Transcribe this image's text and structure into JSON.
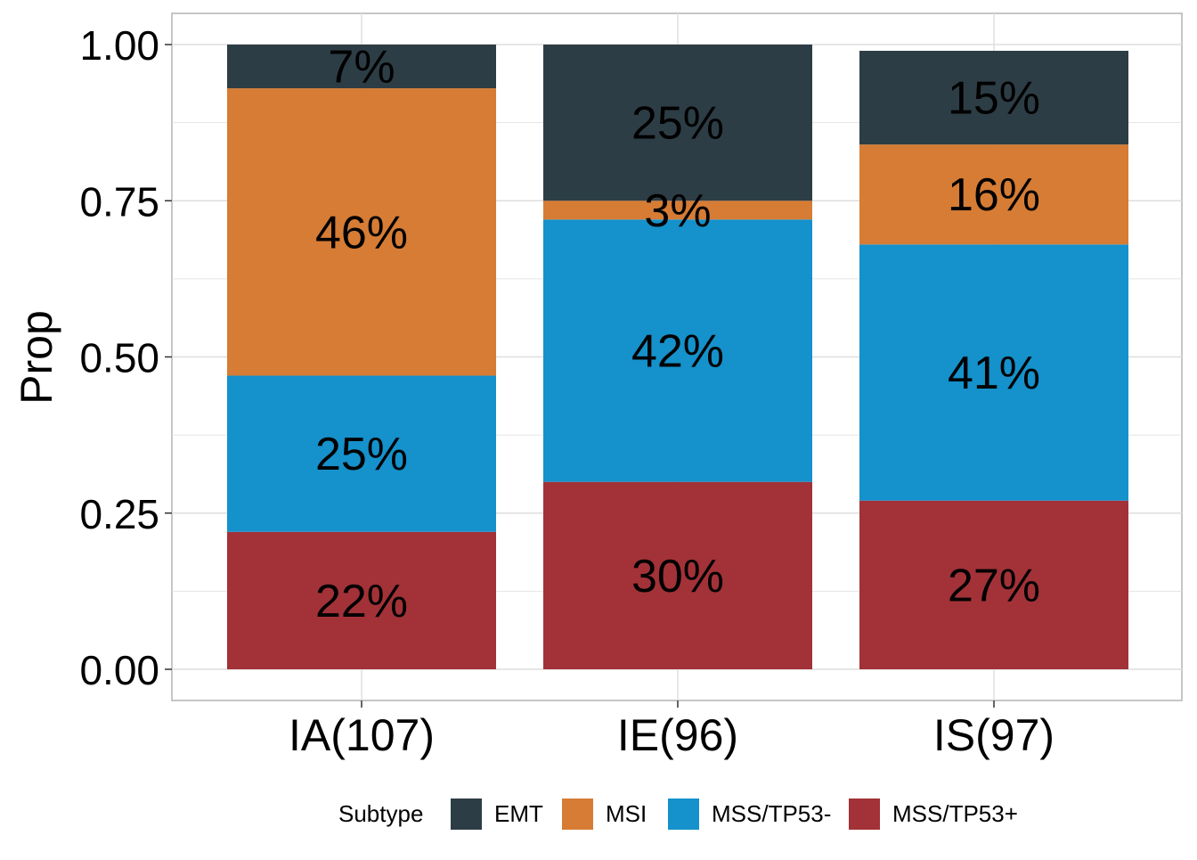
{
  "chart_data": {
    "type": "bar",
    "stacked": true,
    "ylabel": "Prop",
    "xlabel": "",
    "ylim": [
      0,
      1
    ],
    "yticks": [
      "0.00",
      "0.25",
      "0.50",
      "0.75",
      "1.00"
    ],
    "ytick_values": [
      0,
      0.25,
      0.5,
      0.75,
      1.0
    ],
    "categories": [
      "IA(107)",
      "IE(96)",
      "IS(97)"
    ],
    "series": [
      {
        "name": "MSS/TP53+",
        "color": "#a23238",
        "values": [
          0.22,
          0.3,
          0.27
        ],
        "labels": [
          "22%",
          "30%",
          "27%"
        ]
      },
      {
        "name": "MSS/TP53-",
        "color": "#1591cb",
        "values": [
          0.25,
          0.42,
          0.41
        ],
        "labels": [
          "25%",
          "42%",
          "41%"
        ]
      },
      {
        "name": "MSI",
        "color": "#d67c35",
        "values": [
          0.46,
          0.03,
          0.16
        ],
        "labels": [
          "46%",
          "3%",
          "16%"
        ]
      },
      {
        "name": "EMT",
        "color": "#2d3d45",
        "values": [
          0.07,
          0.25,
          0.15
        ],
        "labels": [
          "7%",
          "25%",
          "15%"
        ]
      }
    ],
    "legend": {
      "title": "Subtype",
      "position": "bottom",
      "order": [
        "EMT",
        "MSI",
        "MSS/TP53-",
        "MSS/TP53+"
      ]
    },
    "grid": true
  }
}
